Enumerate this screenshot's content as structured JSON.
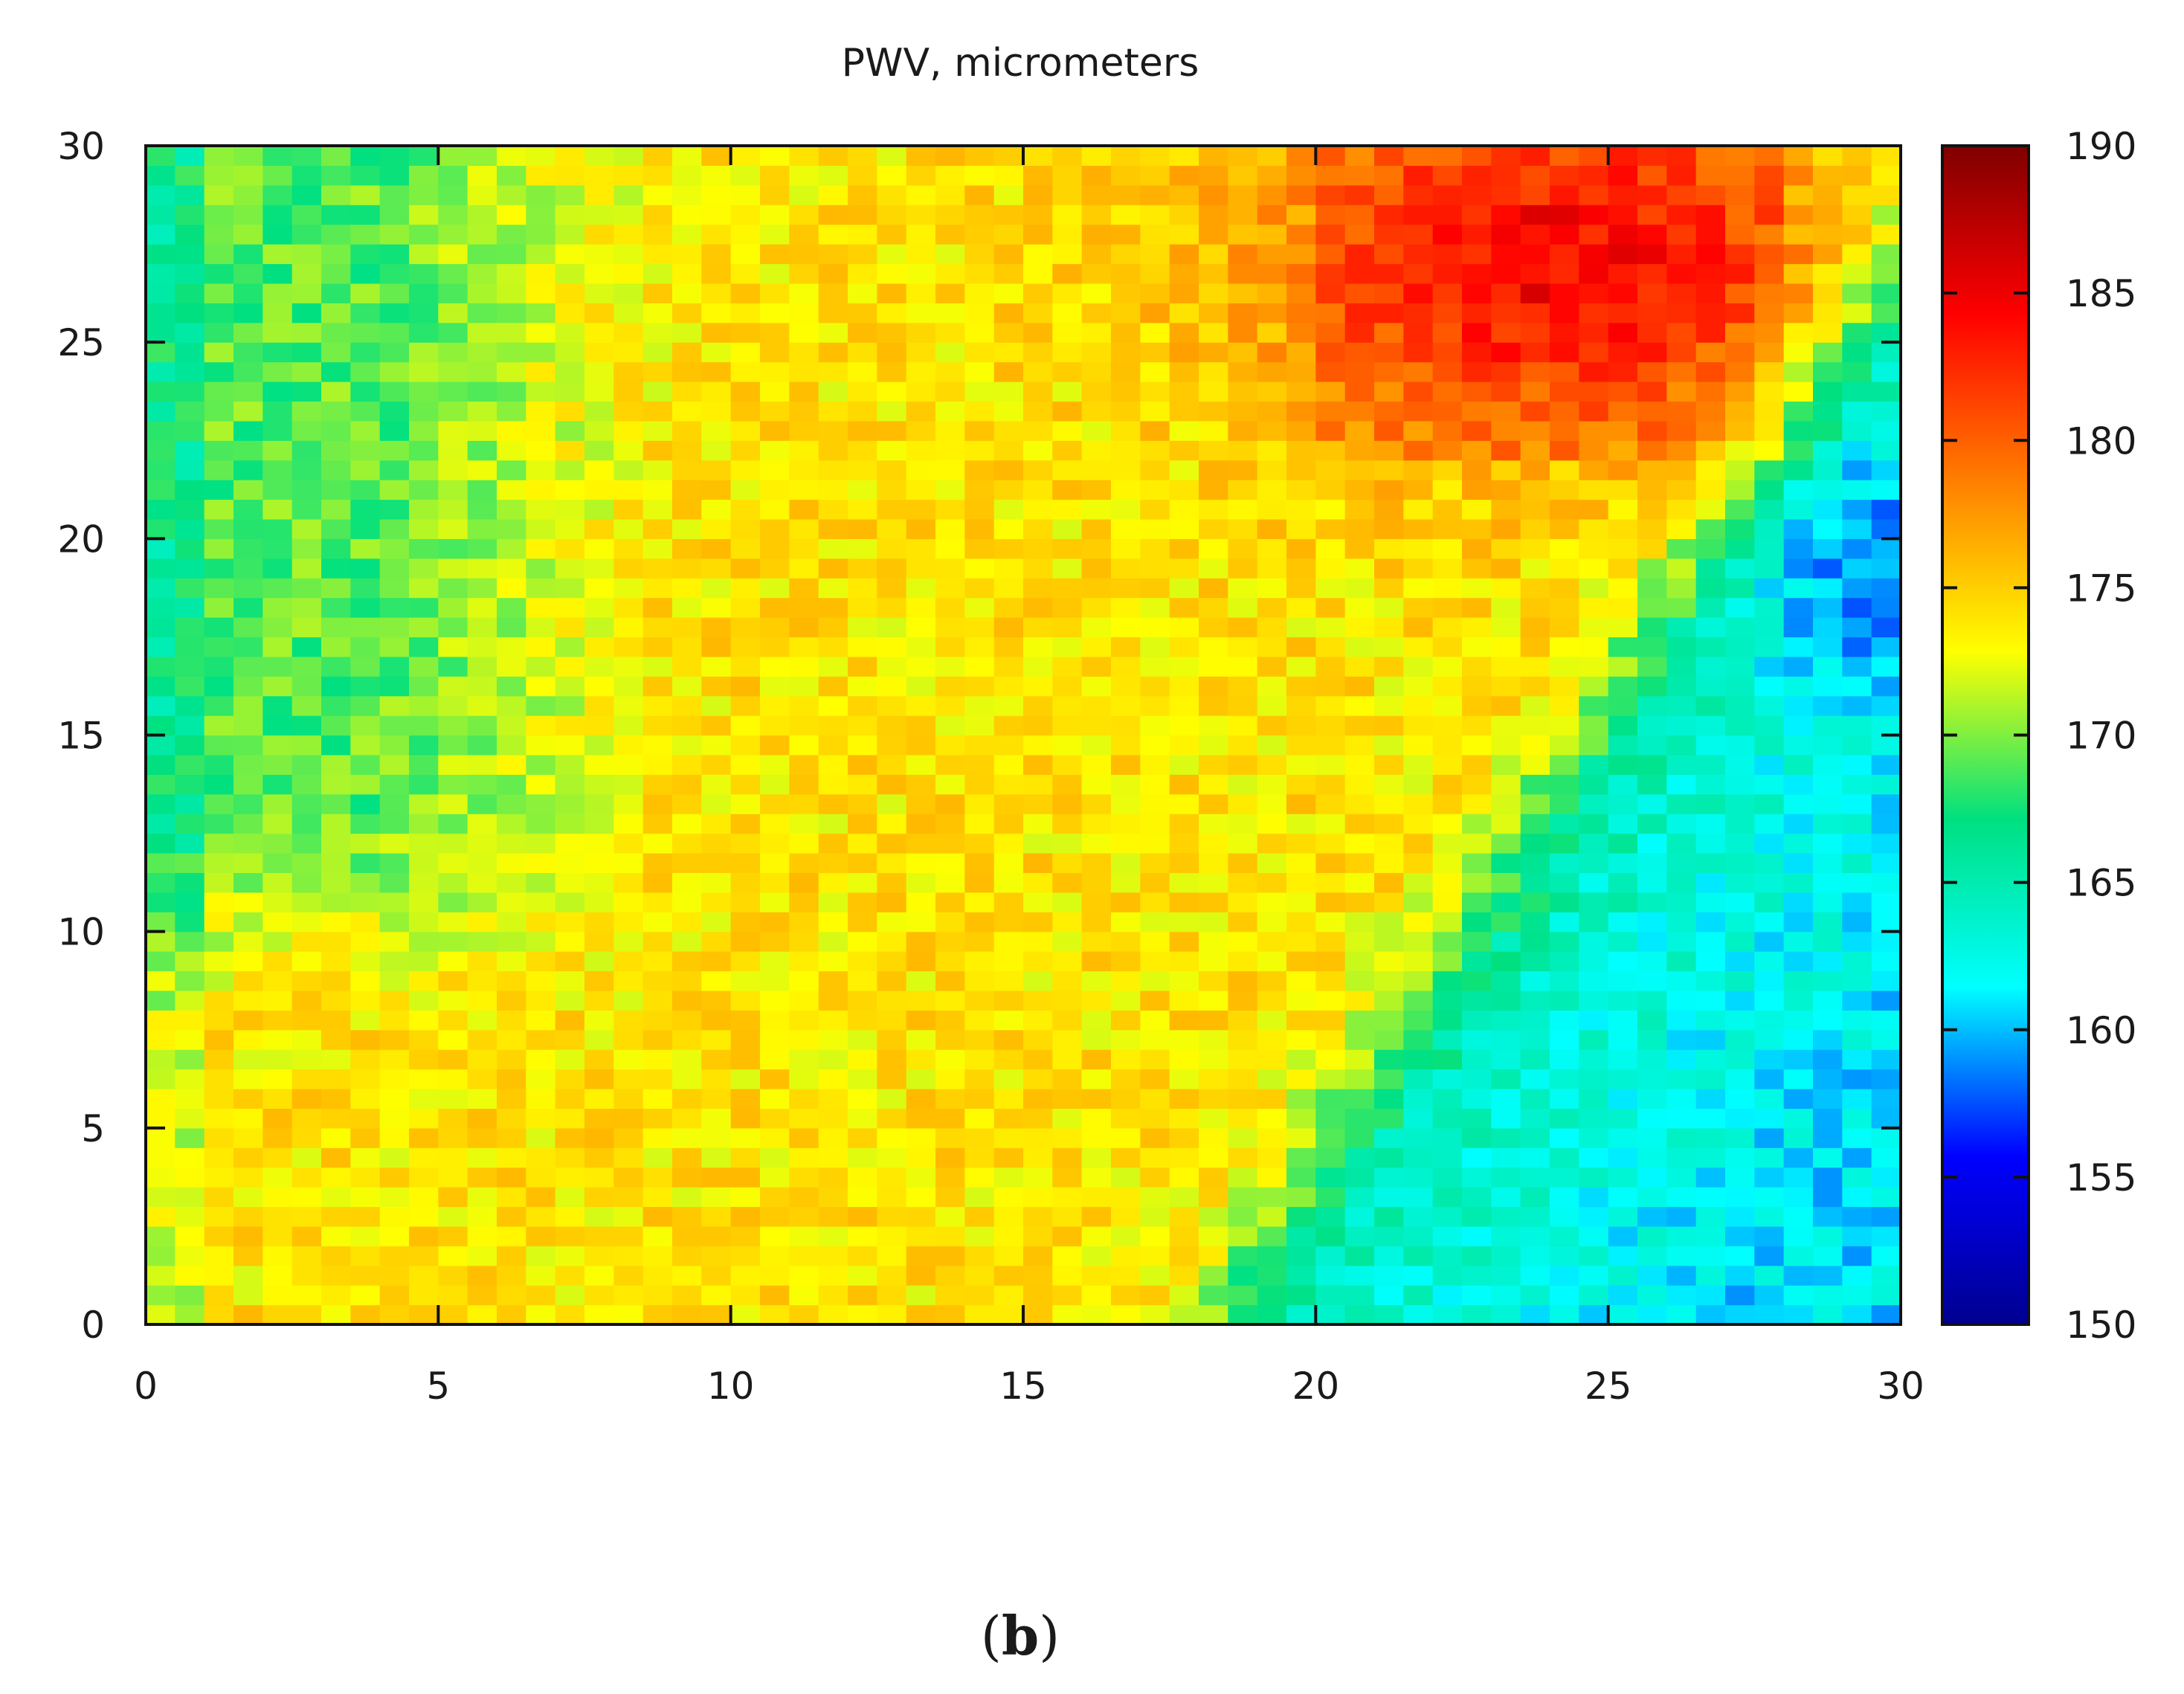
{
  "chart_data": {
    "type": "heatmap",
    "title": "PWV, micrometers",
    "xlabel": "",
    "ylabel": "",
    "xlim": [
      0,
      30
    ],
    "ylim": [
      0,
      30
    ],
    "x_ticks": [
      0,
      5,
      10,
      15,
      20,
      25,
      30
    ],
    "y_ticks": [
      0,
      5,
      10,
      15,
      20,
      25,
      30
    ],
    "grid": false,
    "legend": "none",
    "grid_cells": 60,
    "colorbar": {
      "range": [
        150,
        190
      ],
      "ticks": [
        150,
        155,
        160,
        165,
        170,
        175,
        180,
        185,
        190
      ],
      "placement": "right",
      "colormap": [
        "#00008f",
        "#0000ff",
        "#00ffff",
        "#00e080",
        "#ffff00",
        "#ff8000",
        "#ff0000",
        "#800000"
      ]
    },
    "regions": [
      {
        "name": "upper-left green band",
        "x_range": [
          0,
          8
        ],
        "y_range": [
          12,
          30
        ],
        "approx_value": 169
      },
      {
        "name": "central yellow field",
        "x_range": [
          4,
          20
        ],
        "y_range": [
          0,
          30
        ],
        "approx_value": 174
      },
      {
        "name": "upper-right red-orange patch",
        "x_range": [
          20,
          28
        ],
        "y_range": [
          22,
          30
        ],
        "approx_value": 181
      },
      {
        "name": "lower-right blue wedge",
        "x_range": [
          18,
          30
        ],
        "y_range": [
          0,
          24
        ],
        "approx_value": 162
      },
      {
        "name": "darkest blue spot",
        "x_range": [
          28,
          30
        ],
        "y_range": [
          18,
          21
        ],
        "approx_value": 157
      }
    ],
    "boundary_orange_to_blue": {
      "from": [
        19,
        0
      ],
      "to": [
        30,
        26
      ]
    }
  },
  "panel_label": {
    "open": "(",
    "letter": "b",
    "close": ")"
  }
}
